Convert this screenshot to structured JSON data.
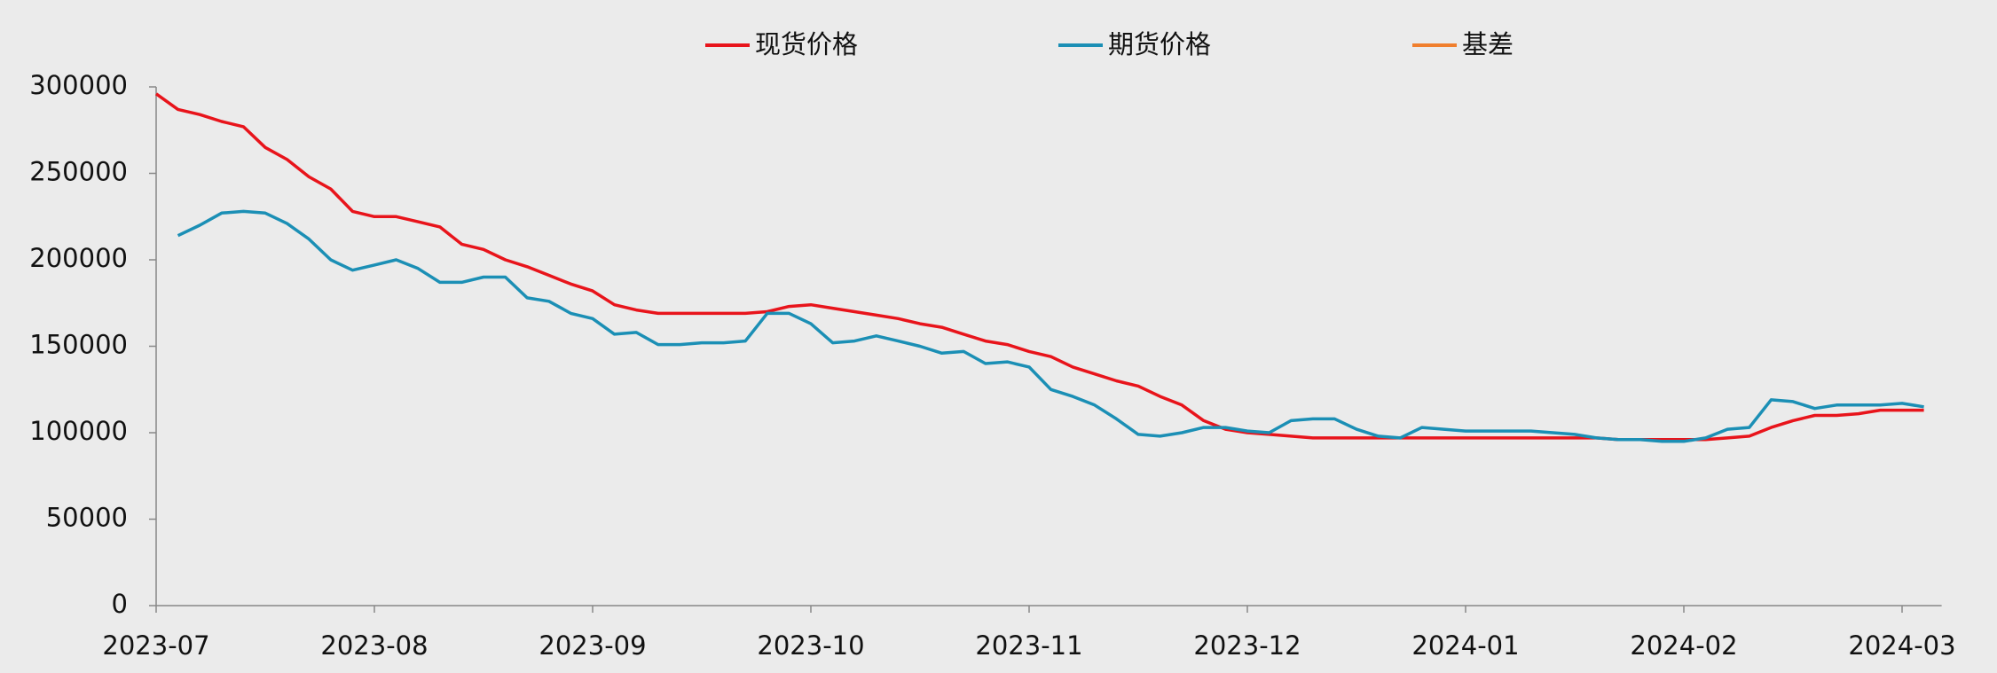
{
  "chart_data": {
    "type": "line",
    "categories": [
      "2023-07",
      null,
      null,
      null,
      null,
      null,
      null,
      null,
      null,
      null,
      "2023-08",
      null,
      null,
      null,
      null,
      null,
      null,
      null,
      null,
      null,
      "2023-09",
      null,
      null,
      null,
      null,
      null,
      null,
      null,
      null,
      null,
      "2023-10",
      null,
      null,
      null,
      null,
      null,
      null,
      null,
      null,
      null,
      "2023-11",
      null,
      null,
      null,
      null,
      null,
      null,
      null,
      null,
      null,
      "2023-12",
      null,
      null,
      null,
      null,
      null,
      null,
      null,
      null,
      null,
      "2024-01",
      null,
      null,
      null,
      null,
      null,
      null,
      null,
      null,
      null,
      "2024-02",
      null,
      null,
      null,
      null,
      null,
      null,
      null,
      null,
      null,
      "2024-03",
      null
    ],
    "series": [
      {
        "name": "现货价格",
        "color": "#e8141b",
        "values": [
          296000,
          287000,
          284000,
          280000,
          277000,
          265000,
          258000,
          248000,
          241000,
          228000,
          225000,
          225000,
          222000,
          219000,
          209000,
          206000,
          200000,
          196000,
          191000,
          186000,
          182000,
          174000,
          171000,
          169000,
          169000,
          169000,
          169000,
          169000,
          170000,
          173000,
          174000,
          172000,
          170000,
          168000,
          166000,
          163000,
          161000,
          157000,
          153000,
          151000,
          147000,
          144000,
          138000,
          134000,
          130000,
          127000,
          121000,
          116000,
          107000,
          102000,
          100000,
          99000,
          98000,
          97000,
          97000,
          97000,
          97000,
          97000,
          97000,
          97000,
          97000,
          97000,
          97000,
          97000,
          97000,
          97000,
          97000,
          96000,
          96000,
          96000,
          96000,
          96000,
          97000,
          98000,
          103000,
          107000,
          110000,
          110000,
          111000,
          113000,
          113000,
          113000
        ]
      },
      {
        "name": "期货价格",
        "color": "#1b8fb5",
        "values": [
          null,
          214000,
          220000,
          227000,
          228000,
          227000,
          221000,
          212000,
          200000,
          194000,
          197000,
          200000,
          195000,
          187000,
          187000,
          190000,
          190000,
          178000,
          176000,
          169000,
          166000,
          157000,
          158000,
          151000,
          151000,
          152000,
          152000,
          153000,
          169000,
          169000,
          163000,
          152000,
          153000,
          156000,
          153000,
          150000,
          146000,
          147000,
          140000,
          141000,
          138000,
          125000,
          121000,
          116000,
          108000,
          99000,
          98000,
          100000,
          103000,
          103000,
          101000,
          100000,
          107000,
          108000,
          108000,
          102000,
          98000,
          97000,
          103000,
          102000,
          101000,
          101000,
          101000,
          101000,
          100000,
          99000,
          97000,
          96000,
          96000,
          95000,
          95000,
          97000,
          102000,
          103000,
          119000,
          118000,
          114000,
          116000,
          116000,
          116000,
          117000,
          115000
        ]
      },
      {
        "name": "基差",
        "color": "#f07f2e",
        "values": [
          null,
          null,
          null,
          null,
          null,
          null,
          null,
          null,
          null,
          null,
          null,
          null,
          null,
          null,
          null,
          null,
          null,
          null,
          null,
          null,
          null,
          null,
          null,
          null,
          null,
          null,
          null,
          null,
          null,
          null,
          null,
          null,
          null,
          null,
          null,
          null,
          null,
          null,
          null,
          null,
          null,
          null,
          null,
          null,
          null,
          null,
          null,
          null,
          null,
          null,
          null,
          null,
          null,
          null,
          null,
          null,
          null,
          null,
          null,
          null,
          null,
          null,
          null,
          null,
          null,
          null,
          null,
          null,
          null,
          null,
          null,
          null,
          null,
          null,
          null,
          null,
          null,
          null,
          null,
          null,
          null,
          null
        ]
      }
    ],
    "ylim": [
      0,
      300000
    ],
    "yticks": [
      0,
      50000,
      100000,
      150000,
      200000,
      250000,
      300000
    ],
    "legend": "top",
    "grid": false
  }
}
